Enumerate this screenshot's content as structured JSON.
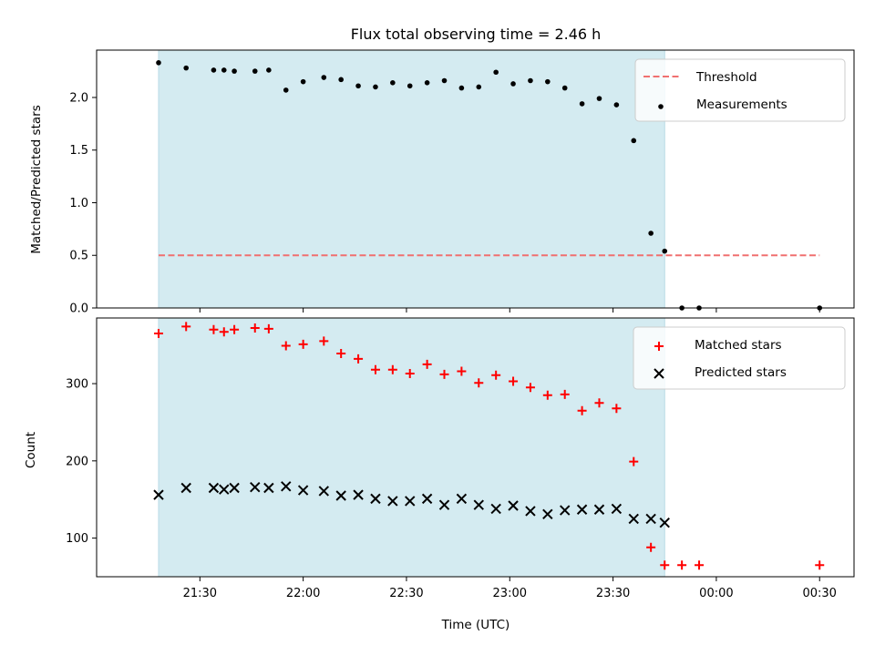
{
  "chart_data": {
    "type": "scatter",
    "title": "Flux total observing time = 2.46 h",
    "xlabel": "Time (UTC)",
    "x_tick_labels": [
      "21:30",
      "22:00",
      "22:30",
      "23:00",
      "23:30",
      "00:00",
      "00:30"
    ],
    "x_tick_values": [
      "21:30",
      "22:00",
      "22:30",
      "23:00",
      "23:30",
      "24:00",
      "24:30"
    ],
    "xlim": [
      "21:00",
      "24:40"
    ],
    "shaded_span": [
      "21:18",
      "23:45"
    ],
    "shade_color": "#d4ebf1",
    "panels": [
      {
        "id": "ratio",
        "ylabel": "Matched/Predicted stars",
        "ylim": [
          0,
          2.45
        ],
        "y_ticks": [
          0.0,
          0.5,
          1.0,
          1.5,
          2.0
        ],
        "y_tick_labels": [
          "0.0",
          "0.5",
          "1.0",
          "1.5",
          "2.0"
        ],
        "legend_position": "top-right",
        "threshold": {
          "name": "Threshold",
          "value": 0.5,
          "x_range": [
            "21:18",
            "24:30"
          ],
          "color": "#f07070",
          "style": "dashed"
        },
        "series": [
          {
            "name": "Measurements",
            "marker": "dot",
            "color": "#000000",
            "x": [
              "21:18",
              "21:26",
              "21:34",
              "21:37",
              "21:40",
              "21:46",
              "21:50",
              "21:55",
              "22:00",
              "22:06",
              "22:11",
              "22:16",
              "22:21",
              "22:26",
              "22:31",
              "22:36",
              "22:41",
              "22:46",
              "22:51",
              "22:56",
              "23:01",
              "23:06",
              "23:11",
              "23:16",
              "23:21",
              "23:26",
              "23:31",
              "23:36",
              "23:41",
              "23:45",
              "23:50",
              "23:55",
              "24:30"
            ],
            "y": [
              2.33,
              2.28,
              2.26,
              2.26,
              2.25,
              2.25,
              2.26,
              2.07,
              2.15,
              2.19,
              2.17,
              2.11,
              2.1,
              2.14,
              2.11,
              2.14,
              2.16,
              2.09,
              2.1,
              2.24,
              2.13,
              2.16,
              2.15,
              2.09,
              1.94,
              1.99,
              1.93,
              1.59,
              0.71,
              0.54,
              0.0,
              0.0,
              0.0
            ]
          }
        ]
      },
      {
        "id": "counts",
        "ylabel": "Count",
        "ylim": [
          50,
          385
        ],
        "y_ticks": [
          100,
          200,
          300
        ],
        "y_tick_labels": [
          "100",
          "200",
          "300"
        ],
        "legend_position": "top-right",
        "series": [
          {
            "name": "Matched stars",
            "marker": "plus",
            "color": "#ff0000",
            "x": [
              "21:18",
              "21:26",
              "21:34",
              "21:37",
              "21:40",
              "21:46",
              "21:50",
              "21:55",
              "22:00",
              "22:06",
              "22:11",
              "22:16",
              "22:21",
              "22:26",
              "22:31",
              "22:36",
              "22:41",
              "22:46",
              "22:51",
              "22:56",
              "23:01",
              "23:06",
              "23:11",
              "23:16",
              "23:21",
              "23:26",
              "23:31",
              "23:36",
              "23:41",
              "23:45",
              "23:50",
              "23:55",
              "24:30"
            ],
            "y": [
              365,
              374,
              370,
              367,
              370,
              372,
              371,
              349,
              351,
              355,
              339,
              332,
              318,
              318,
              313,
              325,
              312,
              316,
              301,
              311,
              303,
              295,
              285,
              286,
              265,
              275,
              268,
              199,
              88,
              65,
              65,
              65,
              65
            ]
          },
          {
            "name": "Predicted stars",
            "marker": "x",
            "color": "#000000",
            "x": [
              "21:18",
              "21:26",
              "21:34",
              "21:37",
              "21:40",
              "21:46",
              "21:50",
              "21:55",
              "22:00",
              "22:06",
              "22:11",
              "22:16",
              "22:21",
              "22:26",
              "22:31",
              "22:36",
              "22:41",
              "22:46",
              "22:51",
              "22:56",
              "23:01",
              "23:06",
              "23:11",
              "23:16",
              "23:21",
              "23:26",
              "23:31",
              "23:36",
              "23:41",
              "23:45"
            ],
            "y": [
              156,
              165,
              165,
              163,
              165,
              166,
              165,
              167,
              162,
              161,
              155,
              156,
              151,
              148,
              148,
              151,
              143,
              151,
              143,
              138,
              142,
              135,
              131,
              136,
              137,
              137,
              138,
              125,
              125,
              120
            ]
          }
        ]
      }
    ]
  }
}
